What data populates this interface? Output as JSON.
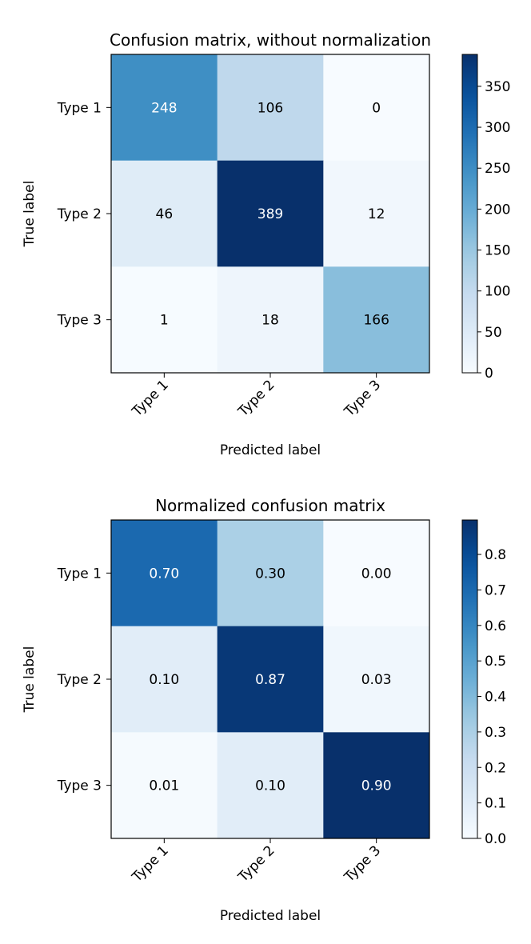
{
  "chart_data": [
    {
      "type": "heatmap",
      "title": "Confusion matrix, without normalization",
      "xlabel": "Predicted label",
      "ylabel": "True label",
      "x_categories": [
        "Type 1",
        "Type 2",
        "Type 3"
      ],
      "y_categories": [
        "Type 1",
        "Type 2",
        "Type 3"
      ],
      "matrix": [
        [
          248,
          106,
          0
        ],
        [
          46,
          389,
          12
        ],
        [
          1,
          18,
          166
        ]
      ],
      "cell_labels": [
        [
          "248",
          "106",
          "0"
        ],
        [
          "46",
          "389",
          "12"
        ],
        [
          "1",
          "18",
          "166"
        ]
      ],
      "colormap": "Blues",
      "vmin": 0,
      "vmax": 389,
      "colorbar_ticks": [
        0,
        50,
        100,
        150,
        200,
        250,
        300,
        350
      ],
      "colorbar_tick_labels": [
        "0",
        "50",
        "100",
        "150",
        "200",
        "250",
        "300",
        "350"
      ],
      "text_threshold": 194.5
    },
    {
      "type": "heatmap",
      "title": "Normalized confusion matrix",
      "xlabel": "Predicted label",
      "ylabel": "True label",
      "x_categories": [
        "Type 1",
        "Type 2",
        "Type 3"
      ],
      "y_categories": [
        "Type 1",
        "Type 2",
        "Type 3"
      ],
      "matrix": [
        [
          0.7,
          0.3,
          0.0
        ],
        [
          0.1,
          0.87,
          0.03
        ],
        [
          0.01,
          0.1,
          0.9
        ]
      ],
      "cell_labels": [
        [
          "0.70",
          "0.30",
          "0.00"
        ],
        [
          "0.10",
          "0.87",
          "0.03"
        ],
        [
          "0.01",
          "0.10",
          "0.90"
        ]
      ],
      "colormap": "Blues",
      "vmin": 0,
      "vmax": 0.897,
      "colorbar_ticks": [
        0.0,
        0.1,
        0.2,
        0.3,
        0.4,
        0.5,
        0.6,
        0.7,
        0.8
      ],
      "colorbar_tick_labels": [
        "0.0",
        "0.1",
        "0.2",
        "0.3",
        "0.4",
        "0.5",
        "0.6",
        "0.7",
        "0.8"
      ],
      "text_threshold": 0.4485
    }
  ]
}
